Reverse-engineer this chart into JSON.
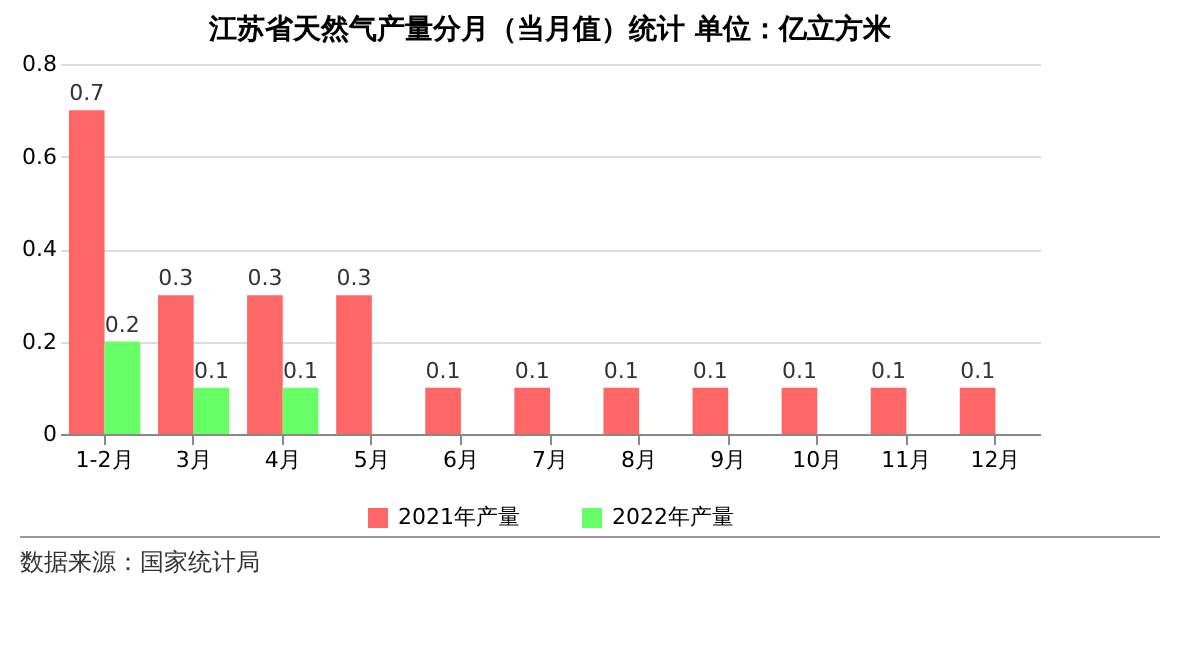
{
  "chart_data": {
    "type": "bar",
    "title": "江苏省天然气产量分月（当月值）统计 单位：亿立方米",
    "categories": [
      "1-2月",
      "3月",
      "4月",
      "5月",
      "6月",
      "7月",
      "8月",
      "9月",
      "10月",
      "11月",
      "12月"
    ],
    "series": [
      {
        "name": "2021年产量",
        "color": "#ff6666",
        "values": [
          0.7,
          0.3,
          0.3,
          0.3,
          0.1,
          0.1,
          0.1,
          0.1,
          0.1,
          0.1,
          0.1
        ]
      },
      {
        "name": "2022年产量",
        "color": "#66ff66",
        "values": [
          0.2,
          0.1,
          0.1,
          null,
          null,
          null,
          null,
          null,
          null,
          null,
          null
        ]
      }
    ],
    "ylim": [
      0,
      0.8
    ],
    "yticks": [
      0,
      0.2,
      0.4,
      0.6,
      0.8
    ],
    "grid": "y",
    "legend": "bottom",
    "data_labels": true,
    "annotations": [
      "数据来源：国家统计局"
    ]
  }
}
